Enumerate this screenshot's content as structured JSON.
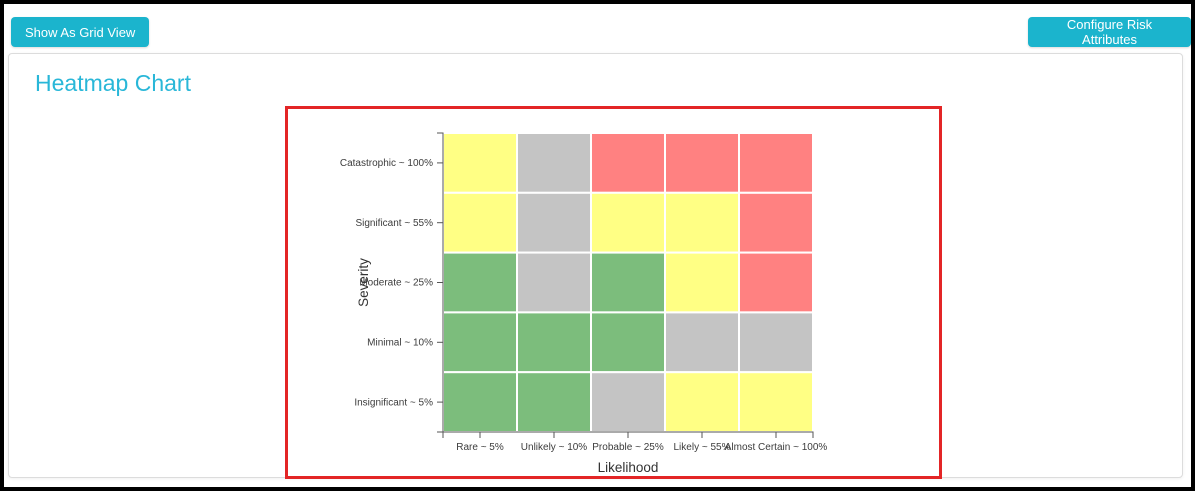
{
  "toolbar": {
    "grid_view_label": "Show As Grid View",
    "configure_label": "Configure Risk Attributes"
  },
  "main": {
    "title": "Heatmap Chart"
  },
  "colors": {
    "button_accent": "#1bb4cd",
    "title_accent": "#29b7d8",
    "highlight_frame": "#e32526"
  },
  "chart_data": {
    "type": "heatmap",
    "title": "",
    "xlabel": "Likelihood",
    "ylabel": "Severity",
    "x_categories": [
      "Rare ~ 5%",
      "Unlikely ~ 10%",
      "Probable ~ 25%",
      "Likely ~ 55%",
      "Almost Certain ~ 100%"
    ],
    "y_categories": [
      "Catastrophic ~ 100%",
      "Significant ~ 55%",
      "Moderate ~ 25%",
      "Minimal ~ 10%",
      "Insignificant ~ 5%"
    ],
    "legend_position": "none",
    "grid": "white 2px separators between cells",
    "palette": {
      "green": "#7cbd7c",
      "yellow": "#ffff84",
      "red": "#ff8181",
      "gray": "#c4c4c4"
    },
    "cells_by_row": [
      [
        "yellow",
        "gray",
        "red",
        "red",
        "red"
      ],
      [
        "yellow",
        "gray",
        "yellow",
        "yellow",
        "red"
      ],
      [
        "green",
        "gray",
        "green",
        "yellow",
        "red"
      ],
      [
        "green",
        "green",
        "green",
        "gray",
        "gray"
      ],
      [
        "green",
        "green",
        "gray",
        "yellow",
        "yellow"
      ]
    ]
  }
}
